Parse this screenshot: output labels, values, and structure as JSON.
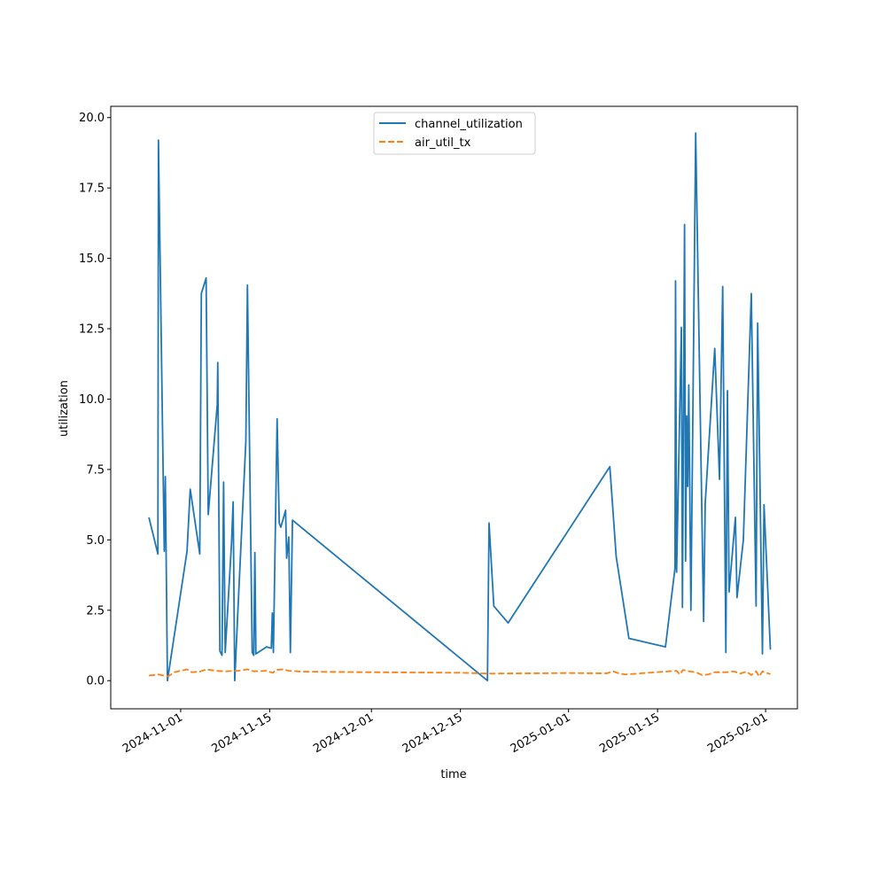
{
  "chart_data": {
    "type": "line",
    "title": "",
    "xlabel": "time",
    "ylabel": "utilization",
    "xlim": [
      "2024-10-21",
      "2025-02-06"
    ],
    "ylim": [
      -1.0,
      20.4
    ],
    "grid": false,
    "legend_position": "top-center",
    "x_ticks": [
      {
        "date": "2024-11-01",
        "label": "2024-11-01"
      },
      {
        "date": "2024-11-15",
        "label": "2024-11-15"
      },
      {
        "date": "2024-12-01",
        "label": "2024-12-01"
      },
      {
        "date": "2024-12-15",
        "label": "2024-12-15"
      },
      {
        "date": "2025-01-01",
        "label": "2025-01-01"
      },
      {
        "date": "2025-01-15",
        "label": "2025-01-15"
      },
      {
        "date": "2025-02-01",
        "label": "2025-02-01"
      }
    ],
    "y_ticks": [
      {
        "value": 0.0,
        "label": "0.0"
      },
      {
        "value": 2.5,
        "label": "2.5"
      },
      {
        "value": 5.0,
        "label": "5.0"
      },
      {
        "value": 7.5,
        "label": "7.5"
      },
      {
        "value": 10.0,
        "label": "10.0"
      },
      {
        "value": 12.5,
        "label": "12.5"
      },
      {
        "value": 15.0,
        "label": "15.0"
      },
      {
        "value": 17.5,
        "label": "17.5"
      },
      {
        "value": 20.0,
        "label": "20.0"
      }
    ],
    "series": [
      {
        "name": "channel_utilization",
        "color": "#1f77b4",
        "dash": "solid",
        "points": [
          [
            "2024-10-27 00:00",
            5.8
          ],
          [
            "2024-10-28 10:00",
            4.5
          ],
          [
            "2024-10-28 12:00",
            19.2
          ],
          [
            "2024-10-29 10:00",
            4.6
          ],
          [
            "2024-10-29 14:00",
            7.25
          ],
          [
            "2024-10-29 22:00",
            0.0
          ],
          [
            "2024-11-02 00:00",
            4.6
          ],
          [
            "2024-11-02 12:00",
            6.8
          ],
          [
            "2024-11-04 00:00",
            4.5
          ],
          [
            "2024-11-04 06:00",
            13.75
          ],
          [
            "2024-11-05 00:00",
            14.3
          ],
          [
            "2024-11-05 08:00",
            5.9
          ],
          [
            "2024-11-06 18:00",
            9.8
          ],
          [
            "2024-11-06 20:00",
            11.3
          ],
          [
            "2024-11-07 04:00",
            1.05
          ],
          [
            "2024-11-07 12:00",
            0.9
          ],
          [
            "2024-11-07 18:00",
            7.05
          ],
          [
            "2024-11-08 00:00",
            1.0
          ],
          [
            "2024-11-09 00:00",
            4.9
          ],
          [
            "2024-11-09 06:00",
            6.35
          ],
          [
            "2024-11-09 12:00",
            0.0
          ],
          [
            "2024-11-10 00:00",
            2.5
          ],
          [
            "2024-11-11 06:00",
            8.5
          ],
          [
            "2024-11-11 12:00",
            14.05
          ],
          [
            "2024-11-12 06:00",
            1.0
          ],
          [
            "2024-11-12 12:00",
            0.9
          ],
          [
            "2024-11-12 16:00",
            4.55
          ],
          [
            "2024-11-12 20:00",
            0.95
          ],
          [
            "2024-11-14 12:00",
            1.2
          ],
          [
            "2024-11-15 06:00",
            1.15
          ],
          [
            "2024-11-15 10:00",
            2.4
          ],
          [
            "2024-11-15 14:00",
            1.0
          ],
          [
            "2024-11-16 04:00",
            9.3
          ],
          [
            "2024-11-16 12:00",
            5.6
          ],
          [
            "2024-11-16 18:00",
            5.45
          ],
          [
            "2024-11-17 12:00",
            6.05
          ],
          [
            "2024-11-17 16:00",
            4.35
          ],
          [
            "2024-11-18 00:00",
            5.1
          ],
          [
            "2024-11-18 06:00",
            1.0
          ],
          [
            "2024-11-18 14:00",
            5.7
          ],
          [
            "2024-12-19 06:00",
            0.0
          ],
          [
            "2024-12-19 12:00",
            5.6
          ],
          [
            "2024-12-20 06:00",
            2.65
          ],
          [
            "2024-12-22 12:00",
            2.05
          ],
          [
            "2025-01-07 12:00",
            7.6
          ],
          [
            "2025-01-08 12:00",
            4.4
          ],
          [
            "2025-01-10 12:00",
            1.5
          ],
          [
            "2025-01-16 06:00",
            1.2
          ],
          [
            "2025-01-17 18:00",
            4.0
          ],
          [
            "2025-01-17 20:00",
            14.2
          ],
          [
            "2025-01-18 00:00",
            3.85
          ],
          [
            "2025-01-18 18:00",
            12.55
          ],
          [
            "2025-01-18 22:00",
            2.6
          ],
          [
            "2025-01-19 06:00",
            16.2
          ],
          [
            "2025-01-19 10:00",
            4.25
          ],
          [
            "2025-01-19 14:00",
            9.4
          ],
          [
            "2025-01-19 18:00",
            6.9
          ],
          [
            "2025-01-19 22:00",
            10.5
          ],
          [
            "2025-01-20 06:00",
            2.5
          ],
          [
            "2025-01-21 00:00",
            19.45
          ],
          [
            "2025-01-22 06:00",
            2.1
          ],
          [
            "2025-01-22 12:00",
            6.3
          ],
          [
            "2025-01-24 00:00",
            11.8
          ],
          [
            "2025-01-24 18:00",
            7.15
          ],
          [
            "2025-01-25 06:00",
            14.0
          ],
          [
            "2025-01-25 18:00",
            1.0
          ],
          [
            "2025-01-26 00:00",
            10.3
          ],
          [
            "2025-01-26 06:00",
            3.15
          ],
          [
            "2025-01-27 06:00",
            5.8
          ],
          [
            "2025-01-27 12:00",
            2.95
          ],
          [
            "2025-01-28 12:00",
            5.0
          ],
          [
            "2025-01-29 18:00",
            13.75
          ],
          [
            "2025-01-30 12:00",
            2.65
          ],
          [
            "2025-01-30 18:00",
            12.7
          ],
          [
            "2025-01-31 12:00",
            0.95
          ],
          [
            "2025-01-31 18:00",
            6.25
          ],
          [
            "2025-02-01 18:00",
            1.1
          ]
        ]
      },
      {
        "name": "air_util_tx",
        "color": "#ff7f0e",
        "dash": "dashed",
        "points": [
          [
            "2024-10-27 00:00",
            0.18
          ],
          [
            "2024-10-28 12:00",
            0.22
          ],
          [
            "2024-10-30 00:00",
            0.15
          ],
          [
            "2024-10-31 00:00",
            0.3
          ],
          [
            "2024-11-02 00:00",
            0.4
          ],
          [
            "2024-11-02 18:00",
            0.3
          ],
          [
            "2024-11-04 00:00",
            0.32
          ],
          [
            "2024-11-05 00:00",
            0.4
          ],
          [
            "2024-11-06 12:00",
            0.35
          ],
          [
            "2024-11-08 00:00",
            0.33
          ],
          [
            "2024-11-10 00:00",
            0.35
          ],
          [
            "2024-11-11 12:00",
            0.4
          ],
          [
            "2024-11-12 12:00",
            0.33
          ],
          [
            "2024-11-14 12:00",
            0.35
          ],
          [
            "2024-11-15 12:00",
            0.28
          ],
          [
            "2024-11-16 00:00",
            0.38
          ],
          [
            "2024-11-17 00:00",
            0.4
          ],
          [
            "2024-11-18 00:00",
            0.35
          ],
          [
            "2024-11-20 00:00",
            0.32
          ],
          [
            "2024-12-01 00:00",
            0.3
          ],
          [
            "2024-12-15 00:00",
            0.28
          ],
          [
            "2024-12-19 12:00",
            0.25
          ],
          [
            "2025-01-01 00:00",
            0.27
          ],
          [
            "2025-01-07 00:00",
            0.26
          ],
          [
            "2025-01-08 00:00",
            0.33
          ],
          [
            "2025-01-09 00:00",
            0.25
          ],
          [
            "2025-01-10 00:00",
            0.22
          ],
          [
            "2025-01-13 00:00",
            0.27
          ],
          [
            "2025-01-16 00:00",
            0.32
          ],
          [
            "2025-01-18 00:00",
            0.35
          ],
          [
            "2025-01-18 12:00",
            0.22
          ],
          [
            "2025-01-19 00:00",
            0.38
          ],
          [
            "2025-01-20 00:00",
            0.33
          ],
          [
            "2025-01-21 00:00",
            0.3
          ],
          [
            "2025-01-22 00:00",
            0.2
          ],
          [
            "2025-01-23 00:00",
            0.22
          ],
          [
            "2025-01-24 00:00",
            0.3
          ],
          [
            "2025-01-26 00:00",
            0.3
          ],
          [
            "2025-01-27 00:00",
            0.33
          ],
          [
            "2025-01-28 00:00",
            0.25
          ],
          [
            "2025-01-29 00:00",
            0.32
          ],
          [
            "2025-01-29 18:00",
            0.2
          ],
          [
            "2025-01-30 12:00",
            0.33
          ],
          [
            "2025-01-31 00:00",
            0.15
          ],
          [
            "2025-01-31 12:00",
            0.33
          ],
          [
            "2025-02-01 18:00",
            0.23
          ]
        ]
      }
    ]
  }
}
